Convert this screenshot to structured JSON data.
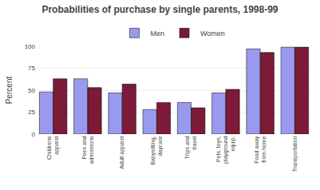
{
  "chart_data": {
    "type": "bar",
    "title": "Probabilities of purchase by single parents, 1998-99",
    "categories": [
      "Childrens\napparel",
      "Fees and\nadmissions",
      "Adult apparel",
      "Babysitting,\ndaycare",
      "Trips and\ntravel",
      "Pets, toys,\nplayground\nequip.",
      "Food away\nfrom home",
      "Transportation"
    ],
    "series": [
      {
        "name": "Men",
        "color": "#9999EE",
        "values": [
          48,
          63,
          47,
          28,
          36,
          47,
          97,
          99
        ]
      },
      {
        "name": "Women",
        "color": "#7B1B38",
        "values": [
          63,
          53,
          57,
          36,
          30,
          51,
          93,
          99
        ]
      }
    ],
    "ylabel": "Percent",
    "ylim": [
      0,
      100
    ],
    "yticks": [
      0,
      25,
      50,
      75,
      100
    ],
    "grid": true,
    "legend": "top"
  }
}
